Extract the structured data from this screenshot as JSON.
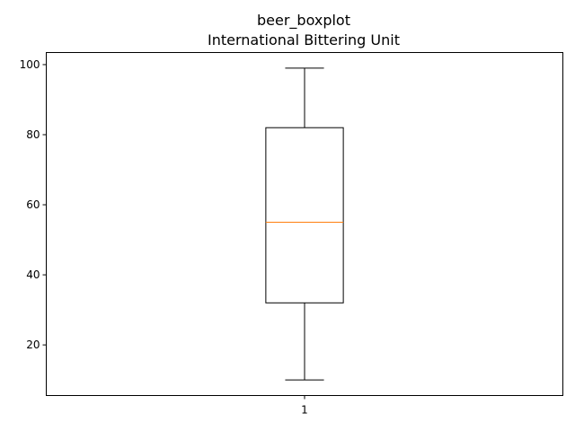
{
  "chart_data": {
    "type": "box",
    "title_line1": "beer_boxplot",
    "title_line2": "International Bittering Unit",
    "categories": [
      "1"
    ],
    "whisker_low": 10,
    "q1": 32,
    "median": 55,
    "q3": 82,
    "whisker_high": 99,
    "y_ticks": [
      20,
      40,
      60,
      80,
      100
    ],
    "ylim": [
      5.55,
      103.45
    ],
    "xlim": [
      0.5,
      1.5
    ],
    "grid": false,
    "colors": {
      "box": "#000000",
      "median": "#ff7f0e",
      "axes": "#000000"
    }
  }
}
